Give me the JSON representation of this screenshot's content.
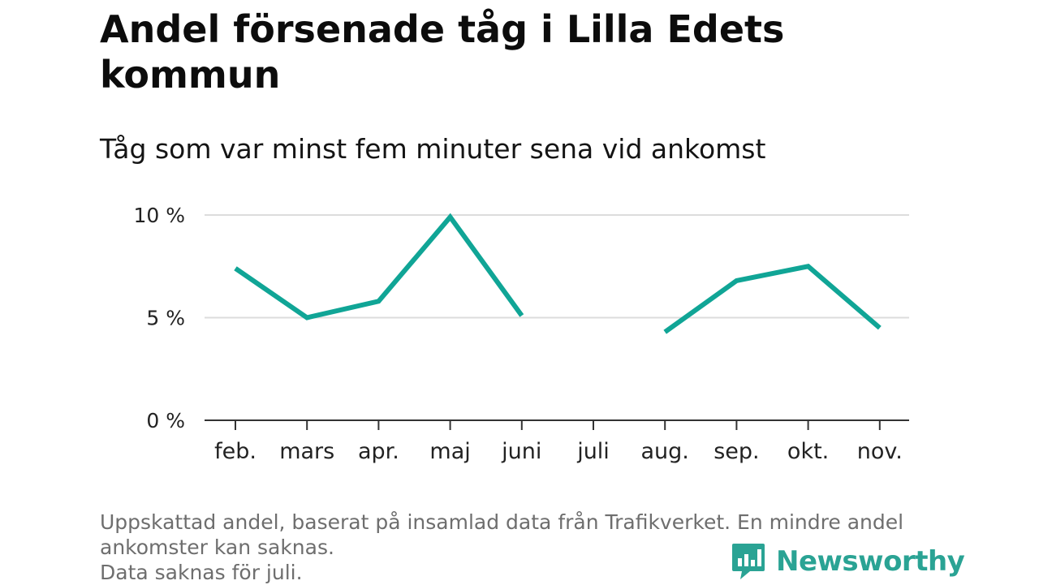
{
  "header": {
    "title": "Andel försenade tåg i Lilla Edets kommun",
    "subtitle": "Tåg som var minst fem minuter sena vid ankomst"
  },
  "footnote": {
    "line1": "Uppskattad andel, baserat på insamlad data från Trafikverket. En mindre andel",
    "line2": "ankomster kan saknas.",
    "line3": "Data saknas för juli."
  },
  "brand": {
    "name": "Newsworthy",
    "color": "#2aa394",
    "icon": "bar-chart-speech-bubble-icon"
  },
  "chart_data": {
    "type": "line",
    "categories": [
      "feb.",
      "mars",
      "apr.",
      "maj",
      "juni",
      "juli",
      "aug.",
      "sep.",
      "okt.",
      "nov."
    ],
    "series": [
      {
        "values": [
          7.4,
          5.0,
          5.8,
          9.9,
          5.1,
          null,
          4.3,
          6.8,
          7.5,
          4.5
        ],
        "color": "#10a596"
      }
    ],
    "y_ticks": [
      0,
      5,
      10
    ],
    "y_tick_labels": [
      "0 %",
      "5 %",
      "10 %"
    ],
    "ylim": [
      0,
      10
    ],
    "grid": true,
    "legend": "none"
  }
}
